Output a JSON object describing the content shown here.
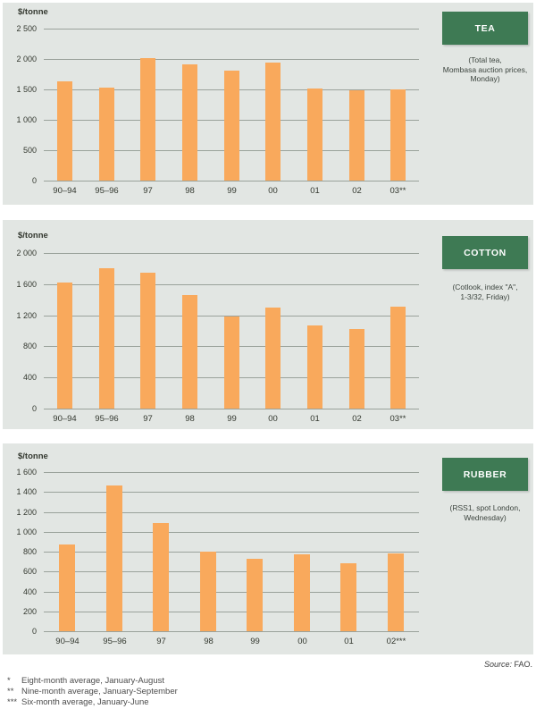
{
  "page": {
    "source_prefix": "Source:",
    "source_text": "FAO.",
    "footnotes": [
      {
        "marker": "*",
        "text": "Eight-month average, January-August"
      },
      {
        "marker": "**",
        "text": "Nine-month average, January-September"
      },
      {
        "marker": "***",
        "text": "Six-month average, January-June"
      }
    ]
  },
  "colors": {
    "panel_bg": "#e2e6e3",
    "bar": "#f9a95c",
    "gridline": "#9aa29b",
    "header_bg": "#3e7a54",
    "header_text": "#ffffff",
    "tick_text": "#33382f",
    "caption_text": "#3b433d"
  },
  "chart_data": [
    {
      "type": "bar",
      "title": "TEA",
      "subtitle_lines": [
        "(Total tea,",
        "Mombasa auction prices,",
        "Monday)"
      ],
      "ylabel": "$/tonne",
      "categories": [
        "90–94",
        "95–96",
        "97",
        "98",
        "99",
        "00",
        "01",
        "02",
        "03**"
      ],
      "values": [
        1630,
        1530,
        2010,
        1910,
        1805,
        1945,
        1510,
        1480,
        1505
      ],
      "ylim": [
        0,
        2500
      ],
      "ytick_labels": [
        "2 500",
        "2 000",
        "1 500",
        "1 000",
        "500",
        "0"
      ],
      "grid": true,
      "legend": "none"
    },
    {
      "type": "bar",
      "title": "COTTON",
      "subtitle_lines": [
        "(Cotlook, index \"A\",",
        "1-3/32, Friday)"
      ],
      "ylabel": "$/tonne",
      "categories": [
        "90–94",
        "95–96",
        "97",
        "98",
        "99",
        "00",
        "01",
        "02",
        "03**"
      ],
      "values": [
        1625,
        1810,
        1745,
        1455,
        1180,
        1300,
        1070,
        1025,
        1315
      ],
      "ylim": [
        0,
        2000
      ],
      "ytick_labels": [
        "2 000",
        "1 600",
        "1 200",
        "800",
        "400",
        "0"
      ],
      "grid": true,
      "legend": "none"
    },
    {
      "type": "bar",
      "title": "RUBBER",
      "subtitle_lines": [
        "(RSS1, spot London,",
        "Wednesday)"
      ],
      "ylabel": "$/tonne",
      "categories": [
        "90–94",
        "95–96",
        "97",
        "98",
        "99",
        "00",
        "01",
        "02***"
      ],
      "values": [
        870,
        1465,
        1090,
        800,
        725,
        775,
        685,
        785
      ],
      "ylim": [
        0,
        1600
      ],
      "ytick_labels": [
        "1 600",
        "1 400",
        "1 200",
        "1 000",
        "800",
        "600",
        "400",
        "200",
        "0"
      ],
      "grid": true,
      "legend": "none"
    }
  ]
}
